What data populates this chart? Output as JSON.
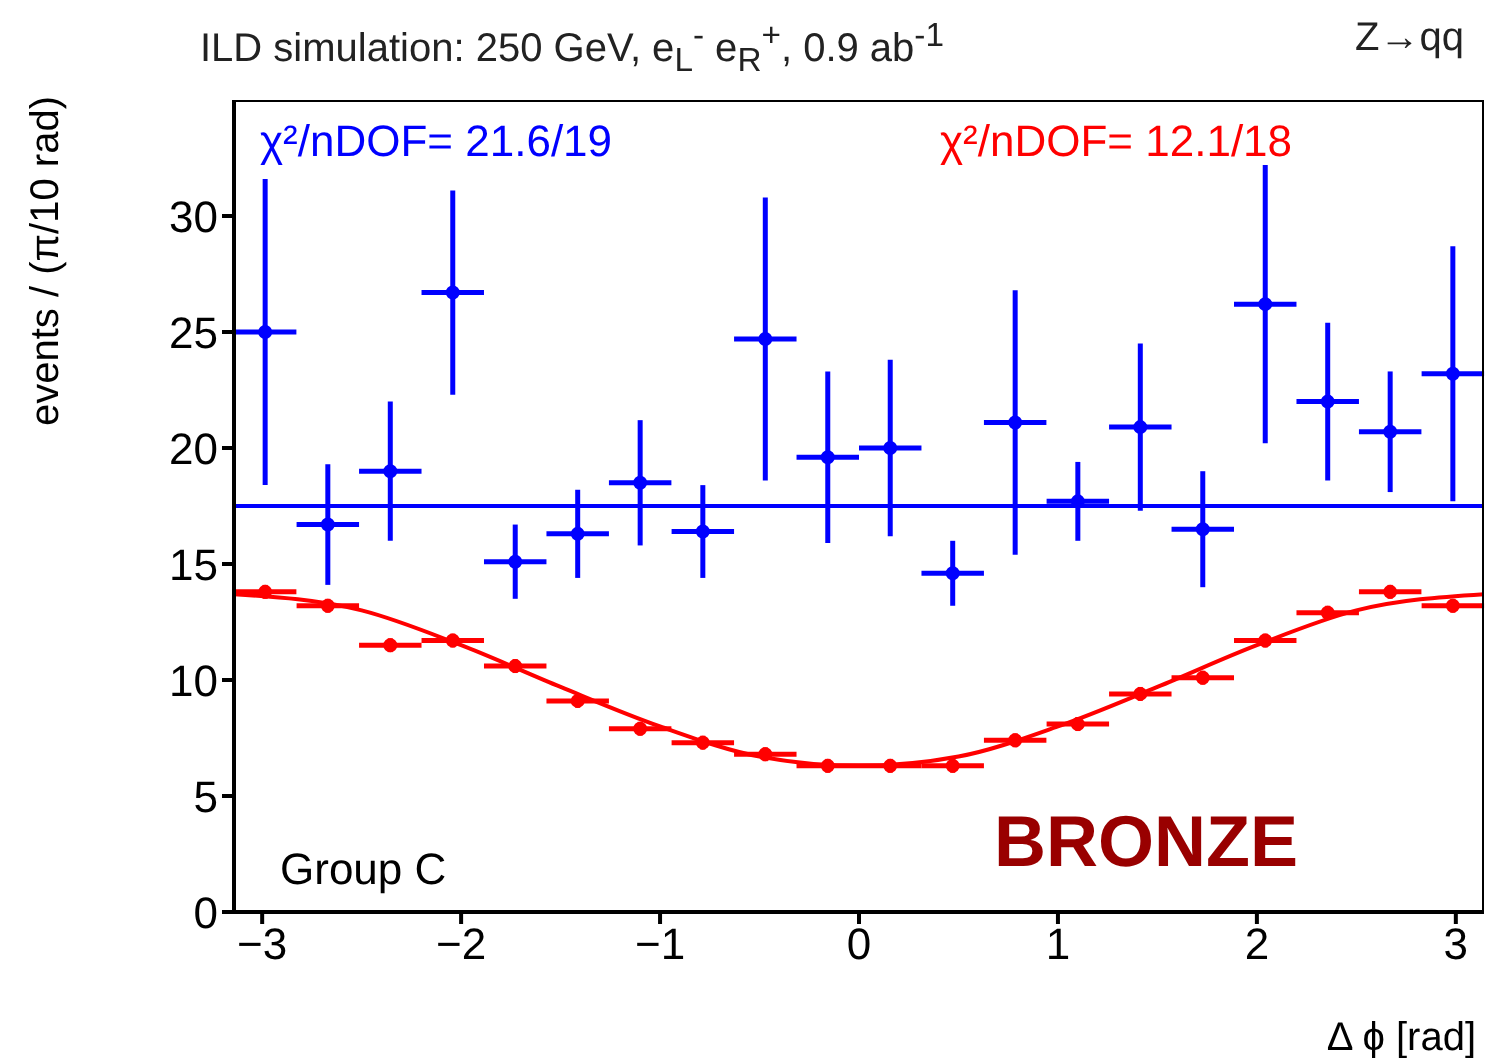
{
  "chart_data": {
    "type": "scatter",
    "title": "ILD simulation: 250 GeV, e$_{L}$$^{-}$ e$_{R}$$^{+}$, 0.9 ab$^{-1}$",
    "subtitle": "Z→qq",
    "xlabel": "Δ ϕ [rad]",
    "ylabel": "events / (π/10 rad)",
    "annotations": [
      "χ²/nDOF= 21.6/19",
      "χ²/nDOF= 12.1/18",
      "Group C",
      "BRONZE"
    ],
    "xlim": [
      -3.1416,
      3.1416
    ],
    "xticks": [
      -3,
      -2,
      -1,
      0,
      1,
      2,
      3
    ],
    "ylim": [
      0,
      35
    ],
    "yticks": [
      0,
      5,
      10,
      15,
      20,
      25,
      30
    ],
    "grid": false,
    "legend": false,
    "series": [
      {
        "marker": "circle",
        "color": "#0000ff",
        "x": [
          -2.985,
          -2.67,
          -2.356,
          -2.042,
          -1.728,
          -1.414,
          -1.1,
          -0.785,
          -0.471,
          -0.157,
          0.157,
          0.471,
          0.785,
          1.1,
          1.414,
          1.728,
          2.042,
          2.356,
          2.67,
          2.985
        ],
        "values": [
          25.0,
          16.7,
          19.0,
          26.7,
          15.1,
          16.3,
          18.5,
          16.4,
          24.7,
          19.6,
          20.0,
          14.6,
          21.1,
          17.7,
          20.9,
          16.5,
          26.2,
          22.0,
          20.7,
          23.2
        ],
        "errors": [
          6.6,
          2.6,
          3.0,
          4.4,
          1.6,
          1.9,
          2.7,
          2.0,
          6.1,
          3.7,
          3.8,
          1.4,
          5.7,
          1.7,
          3.6,
          2.5,
          6.0,
          3.4,
          2.6,
          5.5
        ],
        "xerrors": [
          0.157,
          0.157,
          0.157,
          0.157,
          0.157,
          0.157,
          0.157,
          0.157,
          0.157,
          0.157,
          0.157,
          0.157,
          0.157,
          0.157,
          0.157,
          0.157,
          0.157,
          0.157,
          0.157,
          0.157
        ]
      },
      {
        "type": "line",
        "color": "#0000ff",
        "x": [
          -3.1416,
          3.1416
        ],
        "values": [
          17.5,
          17.5
        ]
      },
      {
        "marker": "circle",
        "color": "#ff0000",
        "x": [
          -2.985,
          -2.67,
          -2.356,
          -2.042,
          -1.728,
          -1.414,
          -1.1,
          -0.785,
          -0.471,
          -0.157,
          0.157,
          0.471,
          0.785,
          1.1,
          1.414,
          1.728,
          2.042,
          2.356,
          2.67,
          2.985
        ],
        "values": [
          13.8,
          13.2,
          11.5,
          11.7,
          10.6,
          9.1,
          7.9,
          7.3,
          6.8,
          6.3,
          6.3,
          6.3,
          7.4,
          8.1,
          9.4,
          10.1,
          11.7,
          12.9,
          13.8,
          13.2
        ],
        "errors": [
          0.3,
          0.3,
          0.3,
          0.3,
          0.3,
          0.3,
          0.3,
          0.3,
          0.3,
          0.3,
          0.3,
          0.3,
          0.3,
          0.3,
          0.3,
          0.3,
          0.3,
          0.3,
          0.3,
          0.3
        ],
        "xerrors": [
          0.157,
          0.157,
          0.157,
          0.157,
          0.157,
          0.157,
          0.157,
          0.157,
          0.157,
          0.157,
          0.157,
          0.157,
          0.157,
          0.157,
          0.157,
          0.157,
          0.157,
          0.157,
          0.157,
          0.157
        ]
      },
      {
        "type": "line",
        "color": "#ff0000",
        "x": [
          -3.1416,
          -2.5,
          -2.0,
          -1.5,
          -1.0,
          -0.5,
          0.0,
          0.5,
          1.0,
          1.5,
          2.0,
          2.5,
          3.1416
        ],
        "values": [
          13.7,
          13.0,
          11.5,
          9.7,
          8.0,
          6.7,
          6.3,
          6.7,
          8.0,
          9.7,
          11.5,
          13.0,
          13.7
        ]
      }
    ]
  }
}
